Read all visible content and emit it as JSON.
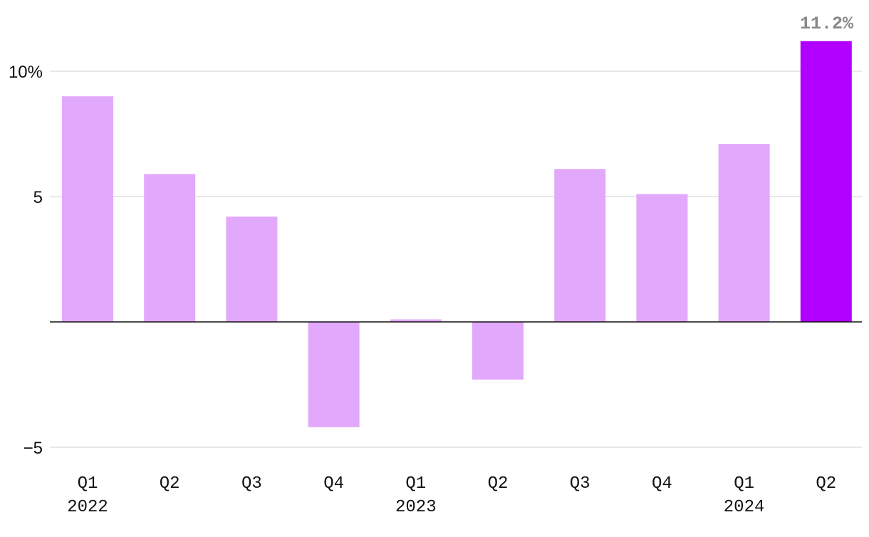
{
  "chart_data": {
    "type": "bar",
    "categories": [
      "Q1 2022",
      "Q2 2022",
      "Q3 2022",
      "Q4 2022",
      "Q1 2023",
      "Q2 2023",
      "Q3 2023",
      "Q4 2023",
      "Q1 2024",
      "Q2 2024"
    ],
    "quarter_labels": [
      "Q1",
      "Q2",
      "Q3",
      "Q4",
      "Q1",
      "Q2",
      "Q3",
      "Q4",
      "Q1",
      "Q2"
    ],
    "year_labels": [
      "2022",
      "",
      "",
      "",
      "2023",
      "",
      "",
      "",
      "2024",
      ""
    ],
    "values": [
      9.0,
      5.9,
      4.2,
      -4.2,
      0.1,
      -2.3,
      6.1,
      5.1,
      7.1,
      11.2
    ],
    "highlight_index": 9,
    "highlight_label": "11.2%",
    "y_ticks": [
      {
        "value": 10,
        "label": "10%"
      },
      {
        "value": 5,
        "label": "5"
      },
      {
        "value": -5,
        "label": "−5"
      }
    ],
    "ylim": [
      -5,
      11.2
    ],
    "grid": true,
    "colors": {
      "bar": "#e2a8fb",
      "highlight": "#b100ff",
      "grid": "#e0e0e0",
      "zero_line": "#111111",
      "data_label": "#888888"
    }
  }
}
